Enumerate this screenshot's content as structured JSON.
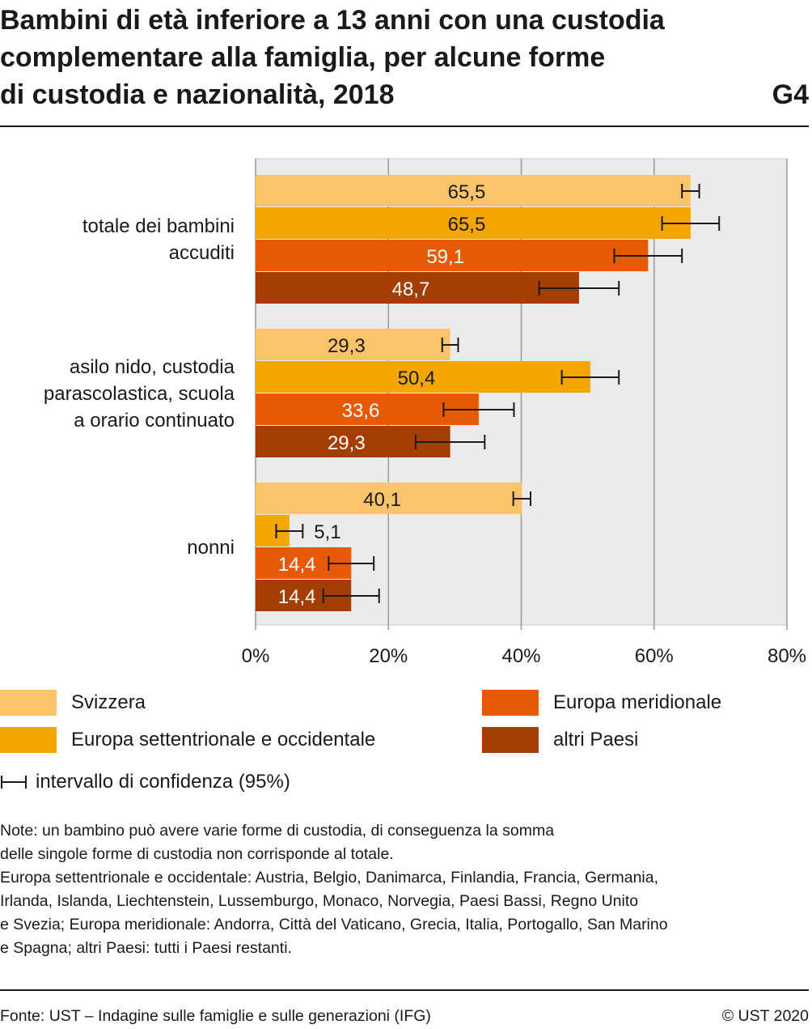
{
  "title_lines": [
    "Bambini di età inferiore a 13 anni con una custodia",
    "complementare alla famiglia, per alcune forme",
    "di custodia e nazionalità, 2018"
  ],
  "chart_id": "G4",
  "chart_data": {
    "type": "bar",
    "orientation": "horizontal",
    "categories": [
      [
        "totale dei bambini",
        "accuditi"
      ],
      [
        "asilo nido, custodia",
        "parascolastica, scuola",
        "a orario continuato"
      ],
      [
        "nonni"
      ]
    ],
    "series": [
      {
        "name": "Svizzera",
        "color": "#fbc46b",
        "values": [
          65.5,
          29.3,
          40.1
        ],
        "labels": [
          "65,5",
          "29,3",
          "40,1"
        ],
        "ci_low": [
          64.2,
          28.1,
          38.8
        ],
        "ci_high": [
          66.8,
          30.5,
          41.4
        ],
        "label_color": "#1a1a1a"
      },
      {
        "name": "Europa settentrionale e occidentale",
        "color": "#f6a600",
        "values": [
          65.5,
          50.4,
          5.1
        ],
        "labels": [
          "65,5",
          "50,4",
          "5,1"
        ],
        "ci_low": [
          61.2,
          46.1,
          3.1
        ],
        "ci_high": [
          69.8,
          54.7,
          7.1
        ],
        "label_color": "#1a1a1a"
      },
      {
        "name": "Europa meridionale",
        "color": "#e75a04",
        "values": [
          59.1,
          33.6,
          14.4
        ],
        "labels": [
          "59,1",
          "33,6",
          "14,4"
        ],
        "ci_low": [
          54.0,
          28.3,
          11.0
        ],
        "ci_high": [
          64.2,
          38.9,
          17.8
        ],
        "label_color": "#ffffff"
      },
      {
        "name": "altri Paesi",
        "color": "#a33e00",
        "values": [
          48.7,
          29.3,
          14.4
        ],
        "labels": [
          "48,7",
          "29,3",
          "14,4"
        ],
        "ci_low": [
          42.7,
          24.1,
          10.2
        ],
        "ci_high": [
          54.7,
          34.5,
          18.6
        ],
        "label_color": "#ffffff"
      }
    ],
    "xlim": [
      0,
      80
    ],
    "xticks": [
      0,
      20,
      40,
      60,
      80
    ],
    "xtick_labels": [
      "0%",
      "20%",
      "40%",
      "60%",
      "80%"
    ],
    "grid": true,
    "legend_position": "bottom"
  },
  "ci_legend_label": "intervallo di confidenza (95%)",
  "notes": [
    "Note: un bambino può avere varie forme di custodia, di conseguenza la somma",
    "delle singole forme di custodia non corrisponde al totale.",
    "Europa settentrionale e occidentale: Austria, Belgio, Danimarca, Finlandia, Francia, Germania,",
    "Irlanda, Islanda, Liechtenstein, Lussemburgo, Monaco, Norvegia, Paesi Bassi, Regno Unito",
    "e Svezia; Europa meridionale: Andorra, Città del Vaticano, Grecia, Italia, Portogallo, San Marino",
    "e Spagna; altri Paesi: tutti i Paesi restanti."
  ],
  "source": "Fonte: UST – Indagine sulle famiglie e sulle generazioni (IFG)",
  "copyright": "© UST 2020"
}
